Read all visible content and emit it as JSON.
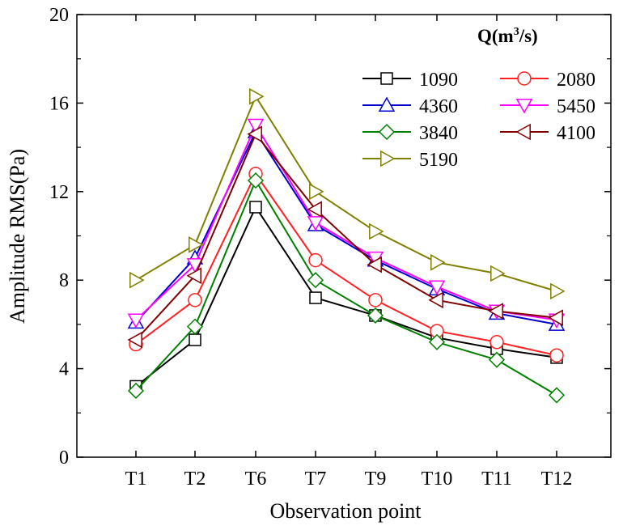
{
  "chart_data": {
    "type": "line",
    "title": "",
    "xlabel": "Observation point",
    "ylabel": "Amplitude RMS(Pa)",
    "ylim": [
      0,
      20
    ],
    "yticks": [
      0,
      4,
      8,
      12,
      16,
      20
    ],
    "categories": [
      "T1",
      "T2",
      "T6",
      "T7",
      "T9",
      "T10",
      "T11",
      "T12"
    ],
    "legend": {
      "title_prefix": "Q(m",
      "title_sup": "3",
      "title_suffix": "/s)",
      "placement": "top-right"
    },
    "series": [
      {
        "name": "1090",
        "color": "#000000",
        "marker": "square",
        "values": [
          3.2,
          5.3,
          11.3,
          7.2,
          6.4,
          5.4,
          4.9,
          4.5
        ]
      },
      {
        "name": "2080",
        "color": "#ff2020",
        "marker": "circle",
        "values": [
          5.1,
          7.1,
          12.8,
          8.9,
          7.1,
          5.7,
          5.2,
          4.6
        ]
      },
      {
        "name": "4360",
        "color": "#0000cc",
        "marker": "triangle-up",
        "values": [
          6.1,
          9.0,
          14.7,
          10.5,
          8.9,
          7.6,
          6.5,
          6.0
        ]
      },
      {
        "name": "5450",
        "color": "#ff00ff",
        "marker": "triangle-down",
        "values": [
          6.2,
          8.7,
          15.0,
          10.6,
          9.0,
          7.7,
          6.6,
          6.2
        ]
      },
      {
        "name": "3840",
        "color": "#008000",
        "marker": "diamond",
        "values": [
          3.0,
          5.9,
          12.5,
          8.0,
          6.4,
          5.2,
          4.4,
          2.8
        ]
      },
      {
        "name": "4100",
        "color": "#800000",
        "marker": "triangle-left",
        "values": [
          5.3,
          8.2,
          14.6,
          11.2,
          8.7,
          7.1,
          6.6,
          6.3
        ]
      },
      {
        "name": "5190",
        "color": "#808000",
        "marker": "triangle-right",
        "values": [
          8.0,
          9.6,
          16.3,
          12.0,
          10.2,
          8.8,
          8.3,
          7.5
        ]
      }
    ]
  }
}
